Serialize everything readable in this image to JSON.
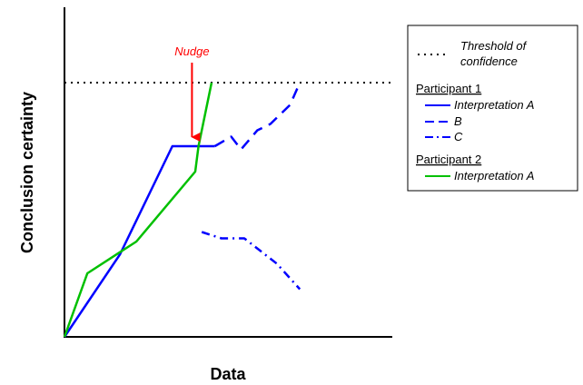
{
  "chart_data": {
    "type": "line",
    "xlabel": "Data",
    "ylabel": "Conclusion certainty",
    "xlim": [
      0,
      100
    ],
    "ylim": [
      0,
      100
    ],
    "ticks": "none",
    "grid": false,
    "legend_position": "top-right",
    "threshold": {
      "label_lines": [
        "Threshold of",
        "confidence"
      ],
      "y": 80,
      "style": "dotted",
      "color": "#000000"
    },
    "groups": [
      {
        "heading": "Participant 1",
        "series": [
          {
            "name": "Interpretation A",
            "color": "#0000ff",
            "style": "solid",
            "x": [
              0,
              17,
              33,
              46
            ],
            "y": [
              0,
              26,
              60,
              60
            ]
          },
          {
            "name": "B",
            "color": "#0000ff",
            "style": "dashed",
            "x": [
              46,
              51,
              54,
              59,
              63,
              69,
              72
            ],
            "y": [
              60,
              63,
              59,
              65,
              67,
              73,
              80
            ]
          },
          {
            "name": "C",
            "color": "#0000ff",
            "style": "dashdot",
            "x": [
              42,
              48,
              55,
              65,
              72
            ],
            "y": [
              33,
              31,
              31,
              23,
              15
            ]
          }
        ]
      },
      {
        "heading": "Participant 2",
        "series": [
          {
            "name": "Interpretation A",
            "color": "#00c000",
            "style": "solid",
            "x": [
              0,
              7,
              22,
              40,
              41,
              45
            ],
            "y": [
              0,
              20,
              30,
              52,
              60,
              80
            ]
          }
        ]
      }
    ],
    "annotations": [
      {
        "text": "Nudge",
        "color": "#ff0000",
        "arrow": true,
        "x": 39,
        "y": 60
      }
    ]
  }
}
